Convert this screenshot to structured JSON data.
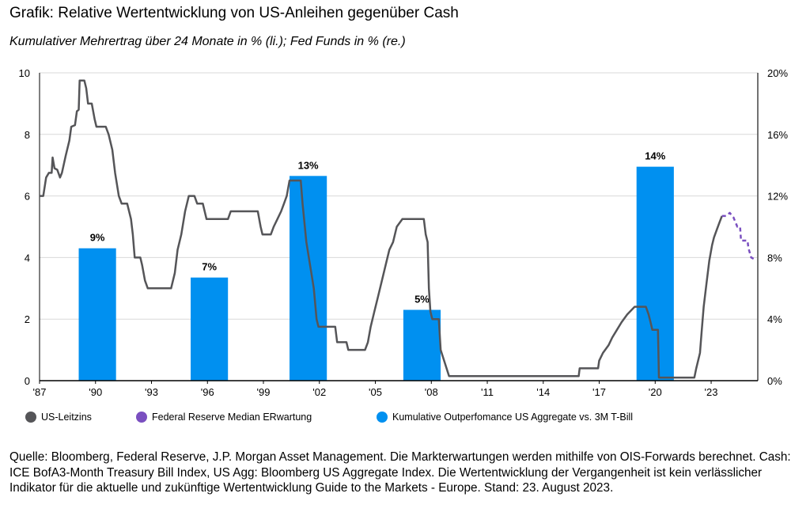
{
  "title": "Grafik: Relative Wertentwicklung von US-Anleihen gegenüber Cash",
  "subtitle": "Kumulativer Mehrertrag über 24 Monate in % (li.); Fed Funds in % (re.)",
  "footer": "Quelle: Bloomberg, Federal Reserve, J.P. Morgan Asset Management. Die Markterwartungen werden mithilfe von OIS-Forwards berechnet. Cash: ICE BofA3-Month Treasury Bill Index, US Agg: Bloomberg US Aggregate Index. Die Wertentwicklung der Vergangenheit ist kein verlässlicher Indikator für die aktuelle und zukünftige Wertentwicklung Guide to the Markets - Europe. Stand: 23. August 2023.",
  "chart_data": {
    "type": "bar+line",
    "x_tick_labels": [
      "'87",
      "'90",
      "'93",
      "'96",
      "'99",
      "'02",
      "'05",
      "'08",
      "'11",
      "'14",
      "'17",
      "'20",
      "'23"
    ],
    "x_ticks": [
      1987,
      1990,
      1993,
      1996,
      1999,
      2002,
      2005,
      2008,
      2011,
      2014,
      2017,
      2020,
      2023
    ],
    "xlim": [
      1987,
      2025.5
    ],
    "y_left": {
      "lim": [
        0,
        10
      ],
      "ticks": [
        0,
        2,
        4,
        6,
        8,
        10
      ],
      "tick_labels": [
        "0",
        "2",
        "4",
        "6",
        "8",
        "10"
      ]
    },
    "y_right": {
      "lim": [
        0,
        20
      ],
      "ticks": [
        0,
        4,
        8,
        12,
        16,
        20
      ],
      "tick_labels": [
        "0%",
        "4%",
        "8%",
        "12%",
        "16%",
        "20%"
      ]
    },
    "grid": true,
    "legend_placement": "bottom",
    "colors": {
      "leitzins": "#555558",
      "fed_expectation": "#7a4fc0",
      "bars": "#0090f0"
    },
    "bars": {
      "name": "Kumulative Outperfomance US Aggregate vs. 3M T-Bill",
      "axis": "right",
      "items": [
        {
          "start": 1989.1,
          "end": 1991.1,
          "value": 8.6,
          "label": "9%"
        },
        {
          "start": 1995.1,
          "end": 1997.1,
          "value": 6.7,
          "label": "7%"
        },
        {
          "start": 2000.4,
          "end": 2002.4,
          "value": 13.3,
          "label": "13%"
        },
        {
          "start": 2006.5,
          "end": 2008.5,
          "value": 4.6,
          "label": "5%"
        },
        {
          "start": 2019.0,
          "end": 2021.0,
          "value": 13.9,
          "label": "14%"
        }
      ]
    },
    "series": [
      {
        "name": "US-Leitzins",
        "axis": "left",
        "style": "solid",
        "points": [
          [
            1987.0,
            6.0
          ],
          [
            1987.2,
            6.0
          ],
          [
            1987.35,
            6.6
          ],
          [
            1987.5,
            6.75
          ],
          [
            1987.65,
            6.75
          ],
          [
            1987.7,
            7.25
          ],
          [
            1987.8,
            6.9
          ],
          [
            1987.95,
            6.85
          ],
          [
            1988.1,
            6.6
          ],
          [
            1988.2,
            6.75
          ],
          [
            1988.4,
            7.3
          ],
          [
            1988.6,
            7.8
          ],
          [
            1988.7,
            8.25
          ],
          [
            1988.9,
            8.3
          ],
          [
            1989.0,
            8.75
          ],
          [
            1989.1,
            8.8
          ],
          [
            1989.15,
            9.75
          ],
          [
            1989.4,
            9.75
          ],
          [
            1989.5,
            9.5
          ],
          [
            1989.6,
            9.0
          ],
          [
            1989.8,
            9.0
          ],
          [
            1989.95,
            8.5
          ],
          [
            1990.05,
            8.25
          ],
          [
            1990.55,
            8.25
          ],
          [
            1990.7,
            8.0
          ],
          [
            1990.9,
            7.5
          ],
          [
            1991.05,
            6.75
          ],
          [
            1991.25,
            6.0
          ],
          [
            1991.4,
            5.75
          ],
          [
            1991.7,
            5.75
          ],
          [
            1991.9,
            5.25
          ],
          [
            1992.0,
            4.75
          ],
          [
            1992.1,
            4.0
          ],
          [
            1992.4,
            4.0
          ],
          [
            1992.5,
            3.75
          ],
          [
            1992.65,
            3.25
          ],
          [
            1992.8,
            3.0
          ],
          [
            1994.05,
            3.0
          ],
          [
            1994.25,
            3.5
          ],
          [
            1994.4,
            4.25
          ],
          [
            1994.6,
            4.75
          ],
          [
            1994.8,
            5.5
          ],
          [
            1995.0,
            6.0
          ],
          [
            1995.3,
            6.0
          ],
          [
            1995.45,
            5.75
          ],
          [
            1995.75,
            5.75
          ],
          [
            1995.95,
            5.25
          ],
          [
            1997.1,
            5.25
          ],
          [
            1997.25,
            5.5
          ],
          [
            1998.7,
            5.5
          ],
          [
            1998.85,
            5.0
          ],
          [
            1998.95,
            4.75
          ],
          [
            1999.4,
            4.75
          ],
          [
            1999.55,
            5.0
          ],
          [
            1999.75,
            5.25
          ],
          [
            1999.95,
            5.5
          ],
          [
            2000.1,
            5.75
          ],
          [
            2000.25,
            6.0
          ],
          [
            2000.4,
            6.5
          ],
          [
            2001.0,
            6.5
          ],
          [
            2001.1,
            5.75
          ],
          [
            2001.3,
            4.5
          ],
          [
            2001.5,
            3.75
          ],
          [
            2001.7,
            3.0
          ],
          [
            2001.85,
            2.0
          ],
          [
            2001.95,
            1.75
          ],
          [
            2002.85,
            1.75
          ],
          [
            2002.95,
            1.25
          ],
          [
            2003.45,
            1.25
          ],
          [
            2003.55,
            1.0
          ],
          [
            2004.45,
            1.0
          ],
          [
            2004.6,
            1.25
          ],
          [
            2004.75,
            1.75
          ],
          [
            2004.95,
            2.25
          ],
          [
            2005.15,
            2.75
          ],
          [
            2005.35,
            3.25
          ],
          [
            2005.55,
            3.75
          ],
          [
            2005.75,
            4.25
          ],
          [
            2005.95,
            4.5
          ],
          [
            2006.15,
            5.0
          ],
          [
            2006.45,
            5.25
          ],
          [
            2007.6,
            5.25
          ],
          [
            2007.7,
            4.75
          ],
          [
            2007.8,
            4.5
          ],
          [
            2007.87,
            3.0
          ],
          [
            2007.95,
            2.25
          ],
          [
            2008.05,
            2.0
          ],
          [
            2008.4,
            2.0
          ],
          [
            2008.5,
            1.0
          ],
          [
            2008.95,
            0.15
          ],
          [
            2015.9,
            0.15
          ],
          [
            2015.95,
            0.4
          ],
          [
            2016.94,
            0.4
          ],
          [
            2017.0,
            0.65
          ],
          [
            2017.2,
            0.9
          ],
          [
            2017.5,
            1.15
          ],
          [
            2017.7,
            1.4
          ],
          [
            2017.95,
            1.65
          ],
          [
            2018.2,
            1.9
          ],
          [
            2018.5,
            2.15
          ],
          [
            2018.9,
            2.4
          ],
          [
            2019.5,
            2.4
          ],
          [
            2019.65,
            2.15
          ],
          [
            2019.75,
            1.9
          ],
          [
            2019.85,
            1.65
          ],
          [
            2020.15,
            1.65
          ],
          [
            2020.2,
            0.1
          ],
          [
            2022.1,
            0.1
          ],
          [
            2022.2,
            0.4
          ],
          [
            2022.4,
            0.9
          ],
          [
            2022.5,
            1.65
          ],
          [
            2022.6,
            2.4
          ],
          [
            2022.75,
            3.15
          ],
          [
            2022.9,
            3.9
          ],
          [
            2023.05,
            4.4
          ],
          [
            2023.15,
            4.65
          ],
          [
            2023.3,
            4.9
          ],
          [
            2023.45,
            5.15
          ],
          [
            2023.58,
            5.35
          ]
        ]
      },
      {
        "name": "Federal Reserve Median ERwartung",
        "axis": "left",
        "style": "dashed",
        "points": [
          [
            2023.58,
            5.35
          ],
          [
            2023.8,
            5.35
          ],
          [
            2024.0,
            5.45
          ],
          [
            2024.2,
            5.3
          ],
          [
            2024.4,
            5.0
          ],
          [
            2024.55,
            5.0
          ],
          [
            2024.6,
            4.55
          ],
          [
            2024.95,
            4.55
          ],
          [
            2025.0,
            4.3
          ],
          [
            2025.15,
            4.0
          ],
          [
            2025.3,
            3.95
          ]
        ]
      }
    ]
  }
}
